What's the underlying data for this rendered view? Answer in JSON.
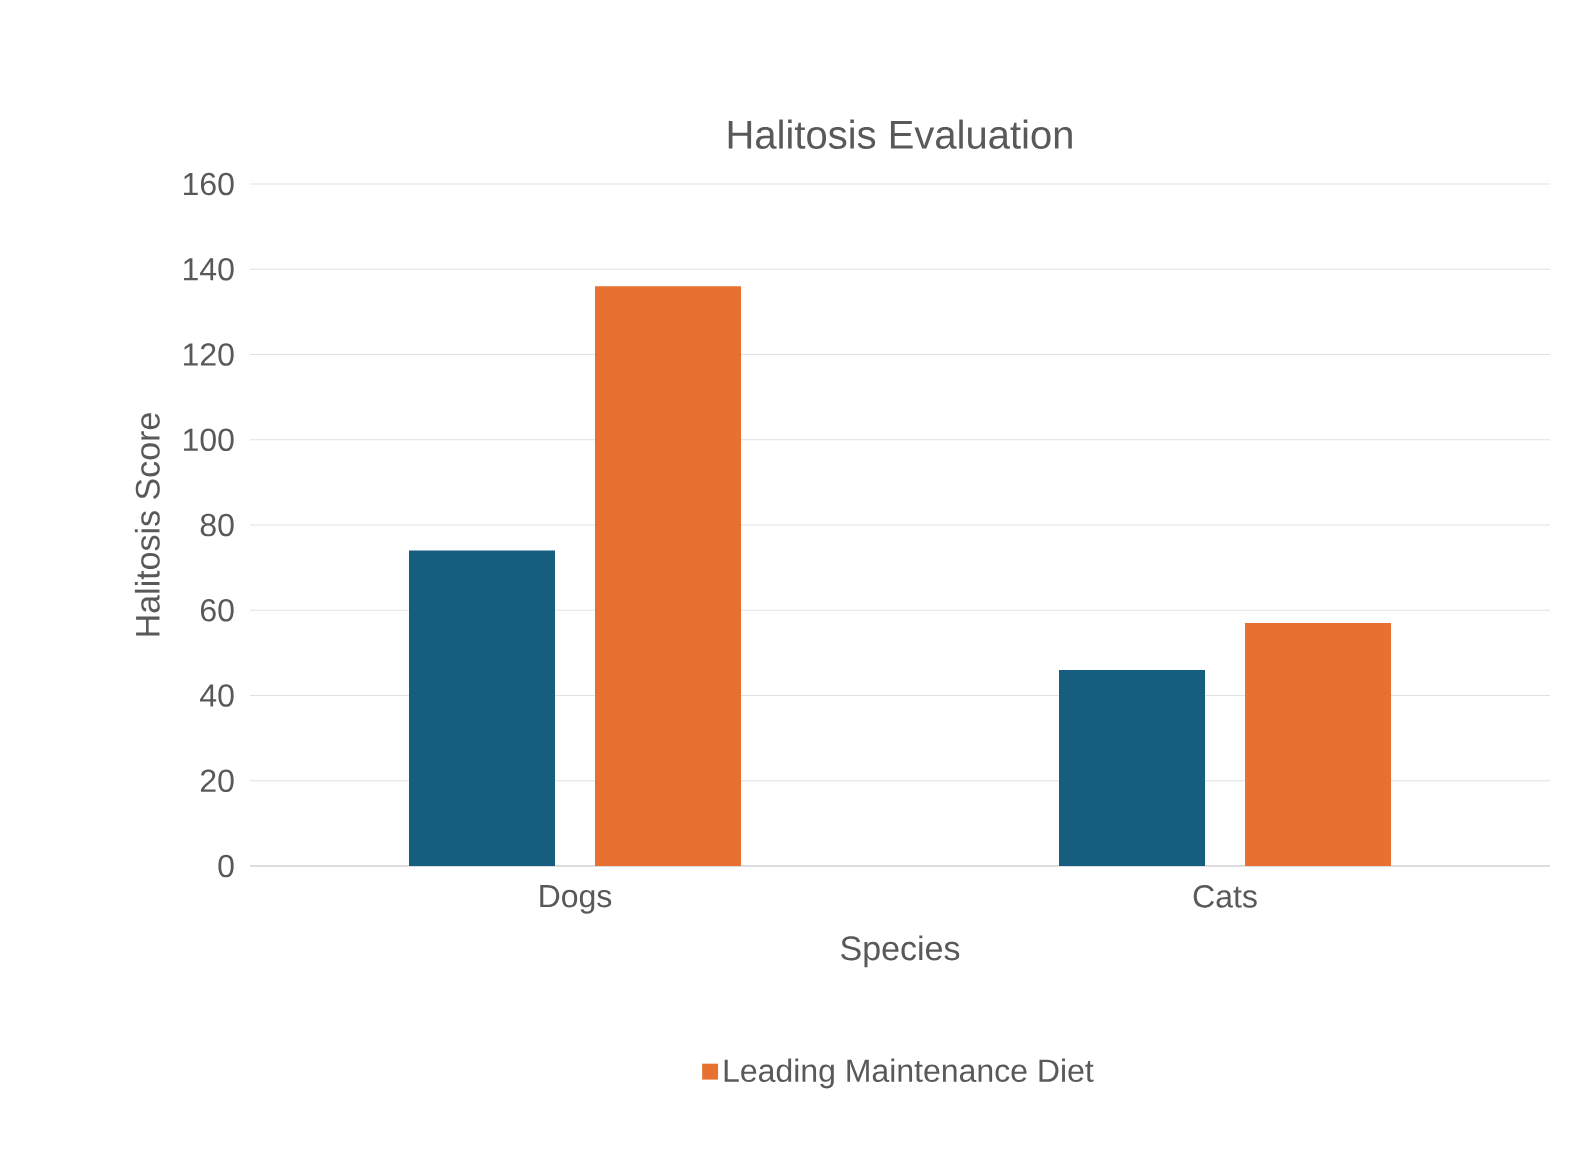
{
  "chart_data": {
    "type": "bar",
    "title": "Halitosis Evaluation",
    "xlabel": "Species",
    "ylabel": "Halitosis Score",
    "categories": [
      "Dogs",
      "Cats"
    ],
    "series": [
      {
        "color": "#165e80",
        "values": [
          74,
          46
        ]
      },
      {
        "name": "Leading Maintenance Diet",
        "color": "#e87131",
        "values": [
          136,
          57
        ]
      }
    ],
    "ylim": [
      0,
      160
    ],
    "yticks": [
      0,
      20,
      40,
      60,
      80,
      100,
      120,
      140,
      160
    ],
    "grid": "y",
    "legend": "bottom"
  }
}
